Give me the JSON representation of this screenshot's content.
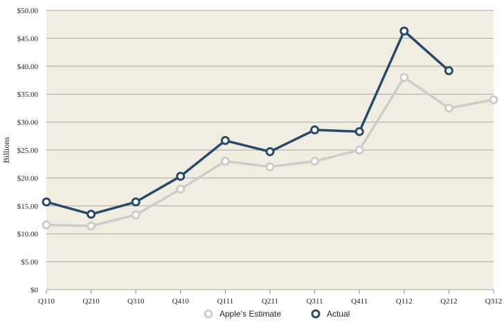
{
  "chart_data": {
    "type": "line",
    "title": "",
    "xlabel": "",
    "ylabel": "Billions",
    "ylim": [
      0,
      50
    ],
    "categories": [
      "Q110",
      "Q210",
      "Q310",
      "Q410",
      "Q111",
      "Q211",
      "Q311",
      "Q411",
      "Q112",
      "Q212",
      "Q312"
    ],
    "y_ticks": [
      "$0",
      "$5.00",
      "$10.00",
      "$15.00",
      "$20.00",
      "$25.00",
      "$30.00",
      "$35.00",
      "$40.00",
      "$45.00",
      "$50.00"
    ],
    "y_tick_values": [
      0,
      5,
      10,
      15,
      20,
      25,
      30,
      35,
      40,
      45,
      50
    ],
    "grid": true,
    "legend_position": "bottom",
    "plot_background": "#f1ede1",
    "series": [
      {
        "name": "Apple's Estimate",
        "color": "#cccccc",
        "values": [
          11.6,
          11.4,
          13.4,
          18.0,
          23.0,
          22.0,
          23.0,
          25.0,
          38.0,
          32.5,
          34.0
        ]
      },
      {
        "name": "Actual",
        "color": "#254b6c",
        "values": [
          15.7,
          13.5,
          15.7,
          20.3,
          26.7,
          24.7,
          28.6,
          28.3,
          46.3,
          39.2,
          null
        ]
      }
    ]
  }
}
